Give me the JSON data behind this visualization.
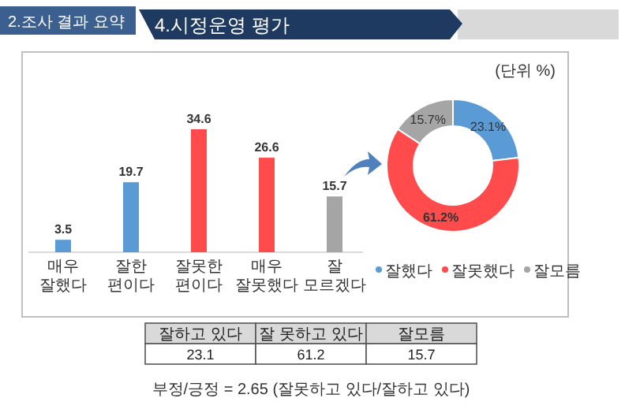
{
  "chart_data": [
    {
      "type": "bar",
      "title": "4.시정운영 평가",
      "subtitle": "2.조사 결과 요약",
      "categories": [
        "매우 잘했다",
        "잘한 편이다",
        "잘못한 편이다",
        "매우 잘못했다",
        "잘 모르겠다"
      ],
      "values": [
        3.5,
        19.7,
        34.6,
        26.6,
        15.7
      ],
      "colors": [
        "#5b9bd5",
        "#5b9bd5",
        "#ff4b4b",
        "#ff4b4b",
        "#a5a5a5"
      ],
      "data_labels": true
    },
    {
      "type": "donut",
      "categories": [
        "잘했다",
        "잘못했다",
        "잘모름"
      ],
      "values": [
        23.1,
        61.2,
        15.7
      ],
      "colors": [
        "#5b9bd5",
        "#ff4b4b",
        "#a5a5a5"
      ],
      "value_labels": [
        "23.1%",
        "61.2%",
        "15.7%"
      ],
      "legend": "bottom",
      "annotations": [
        "(단위 %)"
      ]
    },
    {
      "type": "other",
      "categories": [
        "잘하고 있다",
        "잘 못하고 있다",
        "잘모름"
      ],
      "values": [
        23.1,
        61.2,
        15.7
      ],
      "data_labels": true,
      "annotations": [
        "부정/긍정 = 2.65 (잘못하고 있다/잘하고 있다)"
      ]
    }
  ]
}
